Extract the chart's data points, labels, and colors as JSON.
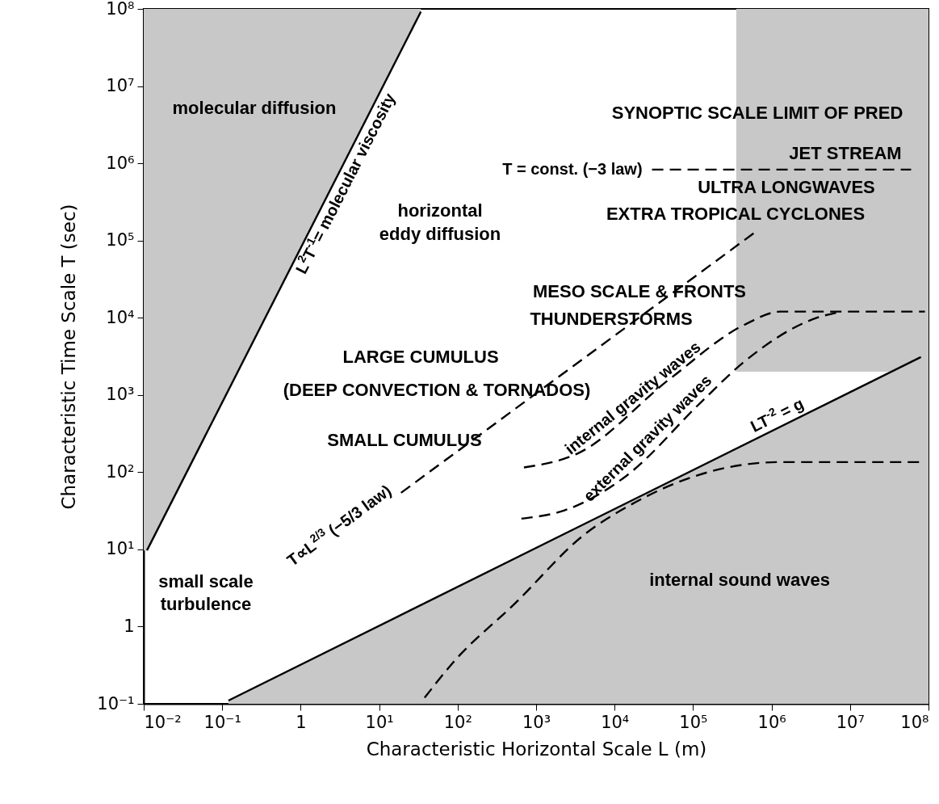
{
  "chart_data": {
    "type": "line",
    "log": "xy",
    "xlabel": "Characteristic Horizontal Scale L (m)",
    "ylabel": "Characteristic Time Scale T (sec)",
    "xlim": [
      0.01,
      100000000
    ],
    "ylim": [
      0.1,
      100000000
    ],
    "xticks": [
      {
        "value": 0.01,
        "label": "10⁻²"
      },
      {
        "value": 0.1,
        "label": "10⁻¹"
      },
      1,
      {
        "value": 10,
        "label": "10¹"
      },
      {
        "value": 100,
        "label": "10²"
      },
      {
        "value": 1000,
        "label": "10³"
      },
      {
        "value": 10000,
        "label": "10⁴"
      },
      {
        "value": 100000,
        "label": "10⁵"
      },
      {
        "value": 1000000,
        "label": "10⁶"
      },
      {
        "value": 10000000,
        "label": "10⁷"
      },
      {
        "value": 100000000,
        "label": "10⁸"
      }
    ],
    "yticks": [
      {
        "value": 0.1,
        "label": "10⁻¹"
      },
      1,
      {
        "value": 10,
        "label": "10¹"
      },
      {
        "value": 100,
        "label": "10²"
      },
      {
        "value": 1000,
        "label": "10³"
      },
      {
        "value": 10000,
        "label": "10⁴"
      },
      {
        "value": 100000,
        "label": "10⁵"
      },
      {
        "value": 1000000,
        "label": "10⁶"
      },
      {
        "value": 10000000,
        "label": "10⁷"
      },
      {
        "value": 100000000,
        "label": "10⁸"
      }
    ],
    "series": [
      {
        "name": "L$^{2}$T$^{-1}$= molecular viscosity",
        "color": "#000000",
        "line_style": "solid",
        "x": [
          0.011,
          34
        ],
        "values": [
          9.7,
          92000000
        ]
      },
      {
        "name": "LT$^{-2}$ = g",
        "color": "#000000",
        "line_style": "solid",
        "x": [
          0.12,
          80000000
        ],
        "values": [
          0.11,
          3100
        ]
      },
      {
        "name": "T∝L$^{2/3}$ (−5/3 law)",
        "color": "#000000",
        "line_style": "dashed",
        "x": [
          19,
          630000
        ],
        "values": [
          54,
          130000
        ]
      },
      {
        "name": "T = const. (−3 law)",
        "color": "#000000",
        "line_style": "dashed",
        "x": [
          30000,
          60000000
        ],
        "values": [
          830000,
          830000
        ]
      },
      {
        "name": "internal gravity waves",
        "color": "#000000",
        "line_style": "dashed",
        "x": [
          700,
          3400,
          50000,
          450000,
          1300000,
          90000000
        ],
        "values": [
          115,
          175,
          1600,
          8100,
          12000,
          12000
        ]
      },
      {
        "name": "external gravity waves",
        "color": "#000000",
        "line_style": "dashed",
        "x": [
          650,
          2300,
          14000,
          130000,
          430000,
          3800000,
          7800000
        ],
        "values": [
          25,
          32,
          89,
          830,
          2600,
          10000,
          12000
        ]
      },
      {
        "color": "#000000",
        "line_style": "dashed",
        "x": [
          38,
          87,
          540,
          4100,
          17000,
          155000,
          1260000,
          90000000
        ],
        "values": [
          0.12,
          0.34,
          2,
          15.5,
          39,
          100,
          135,
          135
        ]
      }
    ],
    "annotations": [
      "molecular diffusion",
      "horizontal",
      "eddy diffusion",
      "SYNOPTIC SCALE LIMIT OF PRED",
      "JET STREAM",
      "ULTRA LONGWAVES",
      "EXTRA TROPICAL CYCLONES",
      "MESO SCALE & FRONTS",
      "THUNDERSTORMS",
      "LARGE CUMULUS",
      "(DEEP CONVECTION & TORNADOS)",
      "SMALL CUMULUS",
      "small scale",
      "turbulence",
      "internal sound waves"
    ]
  }
}
